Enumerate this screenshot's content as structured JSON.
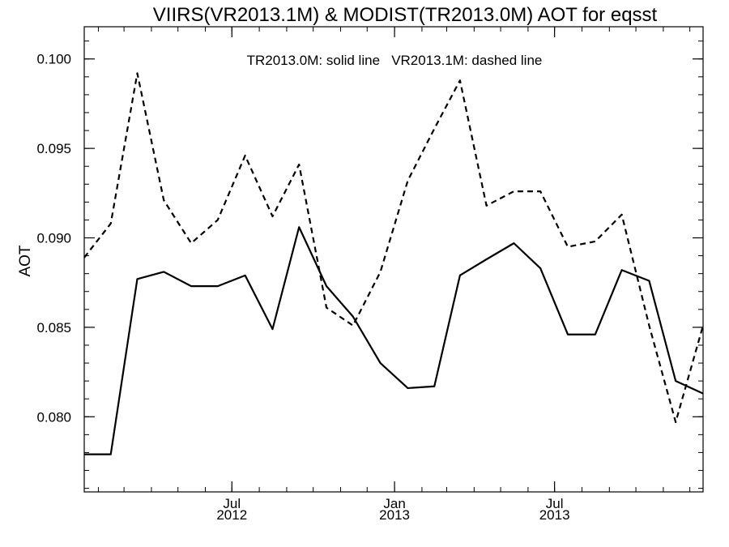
{
  "chart_data": {
    "type": "line",
    "title": "VIIRS(VR2013.1M) & MODIST(TR2013.0M)  AOT for eqsst",
    "xlabel": "",
    "ylabel": "AOT",
    "annotation": "TR2013.0M: solid line   VR2013.1M: dashed line",
    "xlim": [
      "2012-01-16",
      "2013-12-16"
    ],
    "ylim": [
      0.0758,
      0.1018
    ],
    "y_ticks": [
      "0.080",
      "0.085",
      "0.090",
      "0.095",
      "0.100"
    ],
    "x_ticks": [
      {
        "date": "2012-07-01",
        "line1": "Jul",
        "line2": "2012"
      },
      {
        "date": "2013-01-01",
        "line1": "Jan",
        "line2": "2013"
      },
      {
        "date": "2013-07-01",
        "line1": "Jul",
        "line2": "2013"
      }
    ],
    "x": [
      "2012-01-16",
      "2012-02-15",
      "2012-03-16",
      "2012-04-15",
      "2012-05-16",
      "2012-06-15",
      "2012-07-16",
      "2012-08-16",
      "2012-09-15",
      "2012-10-16",
      "2012-11-15",
      "2012-12-16",
      "2013-01-16",
      "2013-02-15",
      "2013-03-16",
      "2013-04-15",
      "2013-05-16",
      "2013-06-15",
      "2013-07-16",
      "2013-08-16",
      "2013-09-15",
      "2013-10-16",
      "2013-11-15",
      "2013-12-16"
    ],
    "series": [
      {
        "name": "TR2013.0M",
        "style": "solid",
        "values": [
          0.0779,
          0.0779,
          0.0877,
          0.0881,
          0.0873,
          0.0873,
          0.0879,
          0.0849,
          0.0906,
          0.0873,
          0.0856,
          0.083,
          0.0816,
          0.0817,
          0.0879,
          0.0888,
          0.0897,
          0.0883,
          0.0846,
          0.0846,
          0.0882,
          0.0876,
          0.082,
          0.0813
        ]
      },
      {
        "name": "VR2013.1M",
        "style": "dashed",
        "values": [
          0.0889,
          0.0908,
          0.0992,
          0.0921,
          0.0897,
          0.091,
          0.0946,
          0.0912,
          0.0941,
          0.0861,
          0.0851,
          0.0881,
          0.0932,
          0.0961,
          0.0988,
          0.0918,
          0.0926,
          0.0926,
          0.0895,
          0.0898,
          0.0913,
          0.0851,
          0.0797,
          0.0851
        ]
      }
    ],
    "colors": {
      "line": "#000000",
      "axes": "#000000",
      "background": "#ffffff"
    },
    "grid": false,
    "legend": "none"
  }
}
